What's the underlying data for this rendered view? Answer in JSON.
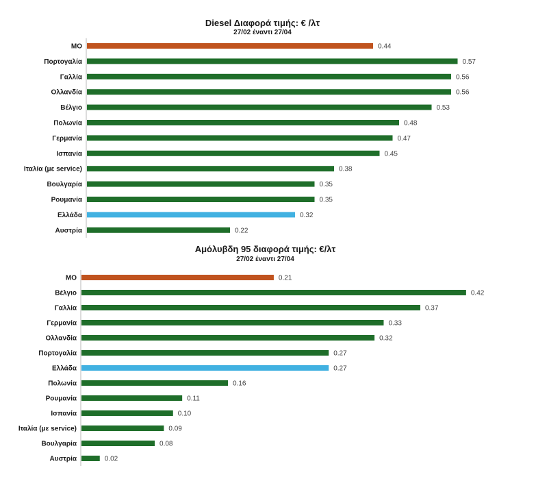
{
  "colors": {
    "average": "#c0531e",
    "country": "#1f6e2a",
    "greece": "#41b1e1",
    "axis": "#b9b9b9",
    "label": "#1a1a1a",
    "value": "#404040"
  },
  "chart_data": [
    {
      "type": "bar",
      "orientation": "horizontal",
      "title": "Diesel Διαφορά τιμής: € /λτ",
      "subtitle": "27/02 έναντι 27/04",
      "xlim": [
        0,
        0.6
      ],
      "grid": false,
      "categories": [
        "ΜΟ",
        "Πορτογαλία",
        "Γαλλία",
        "Ολλανδία",
        "Βέλγιο",
        "Πολωνία",
        "Γερμανία",
        "Ισπανία",
        "Ιταλία (με service)",
        "Βουλγαρία",
        "Ρουμανία",
        "Ελλάδα",
        "Αυστρία"
      ],
      "values": [
        0.44,
        0.57,
        0.56,
        0.56,
        0.53,
        0.48,
        0.47,
        0.45,
        0.38,
        0.35,
        0.35,
        0.32,
        0.22
      ],
      "value_labels": [
        "0.44",
        "0.57",
        "0.56",
        "0.56",
        "0.53",
        "0.48",
        "0.47",
        "0.45",
        "0.38",
        "0.35",
        "0.35",
        "0.32",
        "0.22"
      ],
      "bar_colors": [
        "average",
        "country",
        "country",
        "country",
        "country",
        "country",
        "country",
        "country",
        "country",
        "country",
        "country",
        "greece",
        "country"
      ]
    },
    {
      "type": "bar",
      "orientation": "horizontal",
      "title": "Αμόλυβδη 95 διαφορά τιμής: €/λτ",
      "subtitle": "27/02 έναντι 27/04",
      "xlim": [
        0,
        0.45
      ],
      "grid": false,
      "categories": [
        "ΜΟ",
        "Βέλγιο",
        "Γαλλία",
        "Γερμανία",
        "Ολλανδία",
        "Πορτογαλία",
        "Ελλάδα",
        "Πολωνία",
        "Ρουμανία",
        "Ισπανία",
        "Ιταλία (με service)",
        "Βουλγαρία",
        "Αυστρία"
      ],
      "values": [
        0.21,
        0.42,
        0.37,
        0.33,
        0.32,
        0.27,
        0.27,
        0.16,
        0.11,
        0.1,
        0.09,
        0.08,
        0.02
      ],
      "value_labels": [
        "0.21",
        "0.42",
        "0.37",
        "0.33",
        "0.32",
        "0.27",
        "0.27",
        "0.16",
        "0.11",
        "0.10",
        "0.09",
        "0.08",
        "0.02"
      ],
      "bar_colors": [
        "average",
        "country",
        "country",
        "country",
        "country",
        "country",
        "greece",
        "country",
        "country",
        "country",
        "country",
        "country",
        "country"
      ]
    }
  ]
}
